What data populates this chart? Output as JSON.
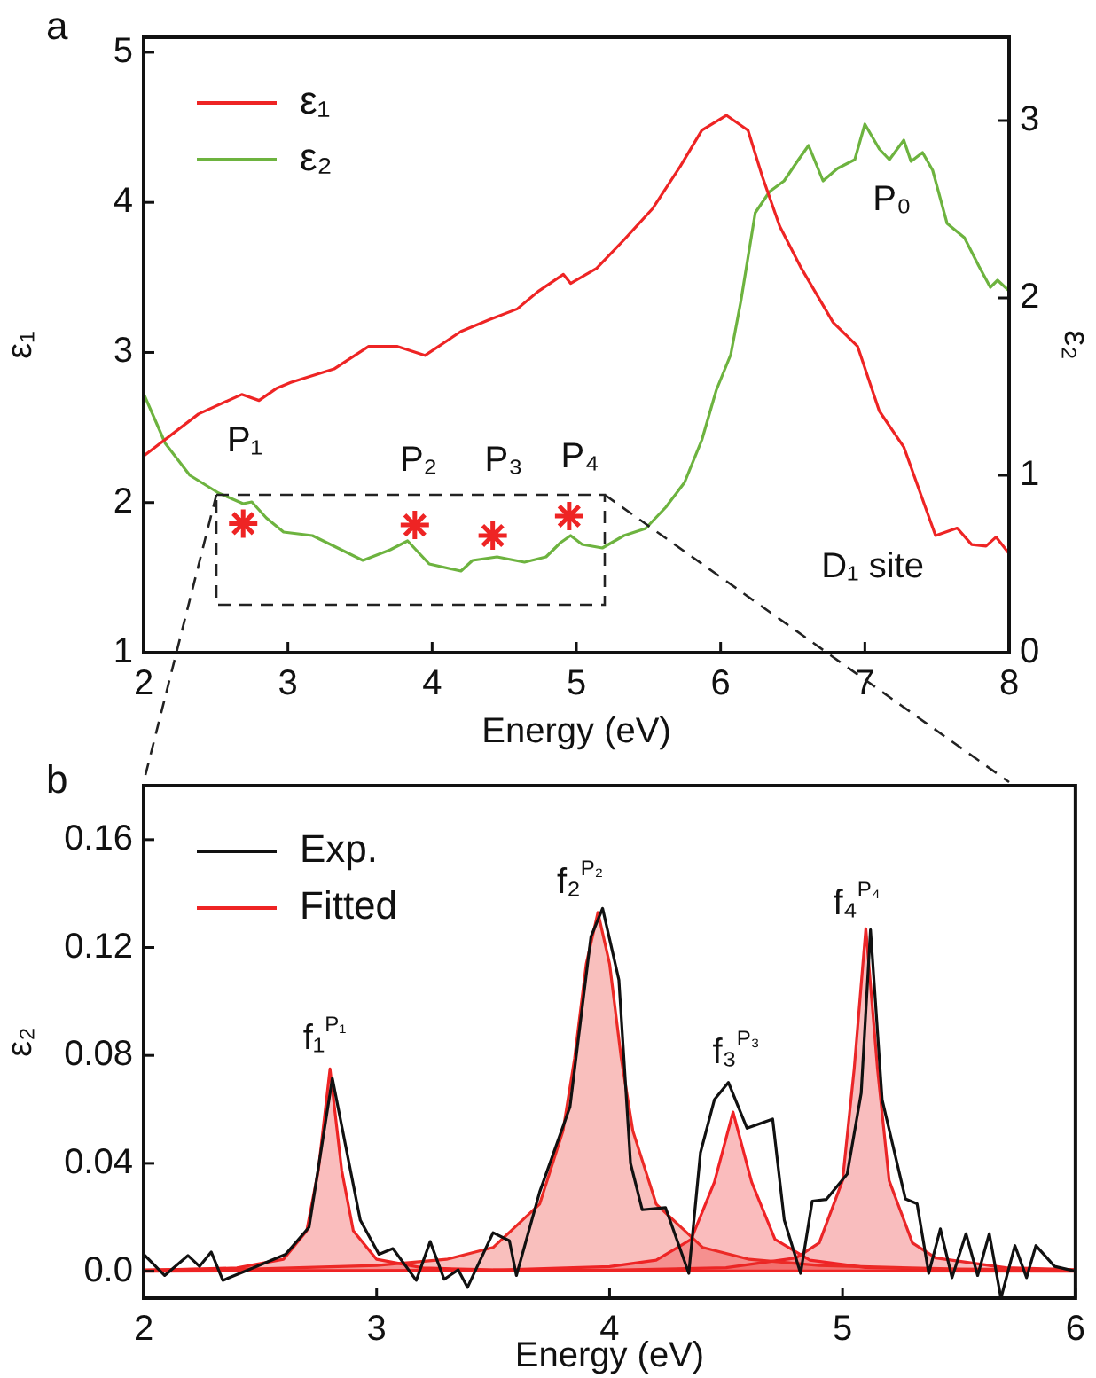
{
  "chart_data": [
    {
      "type": "line",
      "xlabel": "Energy (eV)",
      "ylabel": "ε₁",
      "y2label": "ε₂",
      "legend": "top left",
      "grid": false,
      "marker": "none",
      "xlim": [
        2,
        8
      ],
      "xticks": [
        2,
        3,
        4,
        5,
        6,
        7,
        8
      ],
      "ylim": [
        1,
        5.1
      ],
      "yticks": [
        1,
        2,
        3,
        4,
        5
      ],
      "y2lim": [
        0,
        3.47
      ],
      "y2ticks": [
        0,
        1,
        2,
        3
      ],
      "series": [
        {
          "name": "ε₁",
          "color": "#ee2424",
          "x": [
            2.0,
            2.38,
            2.68,
            2.8,
            2.92,
            3.02,
            3.32,
            3.56,
            3.76,
            3.95,
            4.2,
            4.4,
            4.59,
            4.74,
            4.91,
            4.96,
            5.14,
            5.33,
            5.53,
            5.72,
            5.87,
            6.04,
            6.19,
            6.29,
            6.41,
            6.56,
            6.78,
            6.95,
            7.1,
            7.27,
            7.49,
            7.64,
            7.74,
            7.84,
            7.91,
            8.0
          ],
          "values": [
            2.31,
            2.59,
            2.72,
            2.68,
            2.76,
            2.8,
            2.89,
            3.04,
            3.04,
            2.98,
            3.14,
            3.22,
            3.29,
            3.41,
            3.52,
            3.46,
            3.56,
            3.75,
            3.96,
            4.24,
            4.48,
            4.58,
            4.48,
            4.17,
            3.84,
            3.56,
            3.2,
            3.04,
            2.61,
            2.37,
            1.78,
            1.83,
            1.72,
            1.71,
            1.77,
            1.66
          ]
        },
        {
          "name": "ε₂",
          "color": "#6db33f",
          "axis": "y2",
          "x": [
            2.0,
            2.15,
            2.32,
            2.52,
            2.69,
            2.75,
            2.85,
            2.97,
            3.17,
            3.32,
            3.52,
            3.71,
            3.83,
            3.98,
            4.2,
            4.28,
            4.45,
            4.64,
            4.79,
            4.89,
            4.96,
            5.04,
            5.18,
            5.33,
            5.48,
            5.62,
            5.75,
            5.87,
            5.97,
            6.07,
            6.14,
            6.24,
            6.34,
            6.44,
            6.54,
            6.61,
            6.71,
            6.81,
            6.93,
            7.0,
            7.1,
            7.17,
            7.27,
            7.32,
            7.4,
            7.47,
            7.57,
            7.69,
            7.79,
            7.87,
            7.92,
            8.0
          ],
          "values": [
            1.46,
            1.18,
            1.0,
            0.9,
            0.84,
            0.85,
            0.76,
            0.68,
            0.66,
            0.6,
            0.52,
            0.58,
            0.63,
            0.5,
            0.46,
            0.52,
            0.54,
            0.51,
            0.54,
            0.62,
            0.66,
            0.61,
            0.59,
            0.66,
            0.7,
            0.82,
            0.96,
            1.2,
            1.48,
            1.68,
            1.98,
            2.48,
            2.6,
            2.66,
            2.78,
            2.86,
            2.66,
            2.73,
            2.78,
            2.98,
            2.84,
            2.78,
            2.89,
            2.77,
            2.82,
            2.72,
            2.42,
            2.34,
            2.18,
            2.06,
            2.1,
            2.04
          ]
        },
        {
          "type": "scatter",
          "marker": "cross",
          "color": "#ee2424",
          "x": [
            2.69,
            3.88,
            4.42,
            4.95
          ],
          "values": [
            1.86,
            1.85,
            1.78,
            1.91
          ]
        }
      ],
      "annotations": [
        "a",
        "P₁",
        "P₂",
        "P₃",
        "P₄",
        "P₀",
        "D₁ site"
      ]
    },
    {
      "type": "line",
      "xlabel": "Energy (eV)",
      "ylabel": "ε₂",
      "legend": "top left",
      "grid": false,
      "marker": "none",
      "xlim": [
        2,
        6
      ],
      "xticks": [
        2,
        3,
        4,
        5,
        6
      ],
      "ylim": [
        -0.01,
        0.18
      ],
      "yticks": [
        {
          "value": 0,
          "label": "0.0"
        },
        0.04,
        0.08,
        0.12,
        0.16
      ],
      "series": [
        {
          "name": "Exp.",
          "color": "#111111",
          "x": [
            2.0,
            2.09,
            2.19,
            2.24,
            2.29,
            2.34,
            2.45,
            2.61,
            2.71,
            2.81,
            2.93,
            3.01,
            3.07,
            3.17,
            3.23,
            3.29,
            3.35,
            3.39,
            3.5,
            3.57,
            3.6,
            3.7,
            3.83,
            3.92,
            3.97,
            4.04,
            4.09,
            4.14,
            4.24,
            4.34,
            4.39,
            4.45,
            4.51,
            4.59,
            4.7,
            4.75,
            4.82,
            4.87,
            4.93,
            5.02,
            5.08,
            5.12,
            5.17,
            5.27,
            5.32,
            5.37,
            5.42,
            5.47,
            5.53,
            5.58,
            5.63,
            5.68,
            5.74,
            5.79,
            5.83,
            5.91,
            6.0
          ],
          "values": [
            0.0063,
            -0.0016,
            0.0058,
            0.0018,
            0.0071,
            -0.0034,
            0.0005,
            0.0063,
            0.0163,
            0.0715,
            0.0189,
            0.0063,
            0.0084,
            -0.0034,
            0.011,
            -0.003,
            0.0005,
            -0.006,
            0.0143,
            0.0113,
            -0.0016,
            0.0294,
            0.0609,
            0.124,
            0.1345,
            0.108,
            0.04,
            0.0228,
            0.0236,
            -0.0008,
            0.0439,
            0.0636,
            0.07,
            0.053,
            0.0564,
            0.0189,
            -0.0008,
            0.026,
            0.0266,
            0.036,
            0.066,
            0.1266,
            0.0636,
            0.0268,
            0.025,
            -0.0008,
            0.0157,
            -0.0024,
            0.0139,
            -0.0016,
            0.0139,
            -0.01,
            0.0095,
            -0.0024,
            0.0095,
            0.0018,
            0.0
          ]
        },
        {
          "name": "Fitted",
          "type": "area",
          "color": "#ee2424",
          "x": [
            2.0,
            2.4,
            2.6,
            2.7,
            2.75,
            2.8,
            2.85,
            2.9,
            3.0,
            3.2,
            3.6,
            4.0,
            6.0
          ],
          "values": [
            0.0003,
            0.0012,
            0.0044,
            0.015,
            0.0375,
            0.075,
            0.0375,
            0.015,
            0.0044,
            0.0012,
            0.0003,
            0.0001,
            0.0
          ]
        },
        {
          "type": "area",
          "color": "#ec2a26",
          "x": [
            2.0,
            2.5,
            3.0,
            3.3,
            3.5,
            3.7,
            3.8,
            3.85,
            3.9,
            3.95,
            4.0,
            4.05,
            4.1,
            4.2,
            4.4,
            4.6,
            4.9,
            5.5,
            6.0
          ],
          "values": [
            0.0005,
            0.0009,
            0.0021,
            0.0044,
            0.0088,
            0.0249,
            0.052,
            0.079,
            0.114,
            0.133,
            0.114,
            0.079,
            0.052,
            0.0249,
            0.0088,
            0.0044,
            0.0021,
            0.0008,
            0.0005
          ]
        },
        {
          "type": "area",
          "color": "#f02226",
          "x": [
            2.0,
            3.0,
            3.5,
            4.0,
            4.2,
            4.35,
            4.45,
            4.53,
            4.61,
            4.71,
            4.86,
            5.1,
            5.5,
            6.0
          ],
          "values": [
            0.0001,
            0.0002,
            0.0004,
            0.0017,
            0.0041,
            0.0118,
            0.033,
            0.059,
            0.033,
            0.0118,
            0.0041,
            0.0014,
            0.0005,
            0.0002
          ]
        },
        {
          "type": "area",
          "color": "#ea2628",
          "x": [
            2.0,
            3.0,
            4.0,
            4.5,
            4.8,
            4.9,
            5.0,
            5.05,
            5.1,
            5.15,
            5.2,
            5.3,
            5.4,
            5.7,
            6.0
          ],
          "values": [
            0.0,
            0.0001,
            0.0004,
            0.0013,
            0.0049,
            0.0105,
            0.0336,
            0.075,
            0.127,
            0.075,
            0.0336,
            0.0105,
            0.0049,
            0.0013,
            0.0006
          ]
        }
      ],
      "annotations": [
        "b",
        "f₁$^{P₁}$",
        "f₂$^{P₂}$",
        "f₃$^{P₃}$",
        "f₄$^{P₄}$"
      ]
    }
  ]
}
